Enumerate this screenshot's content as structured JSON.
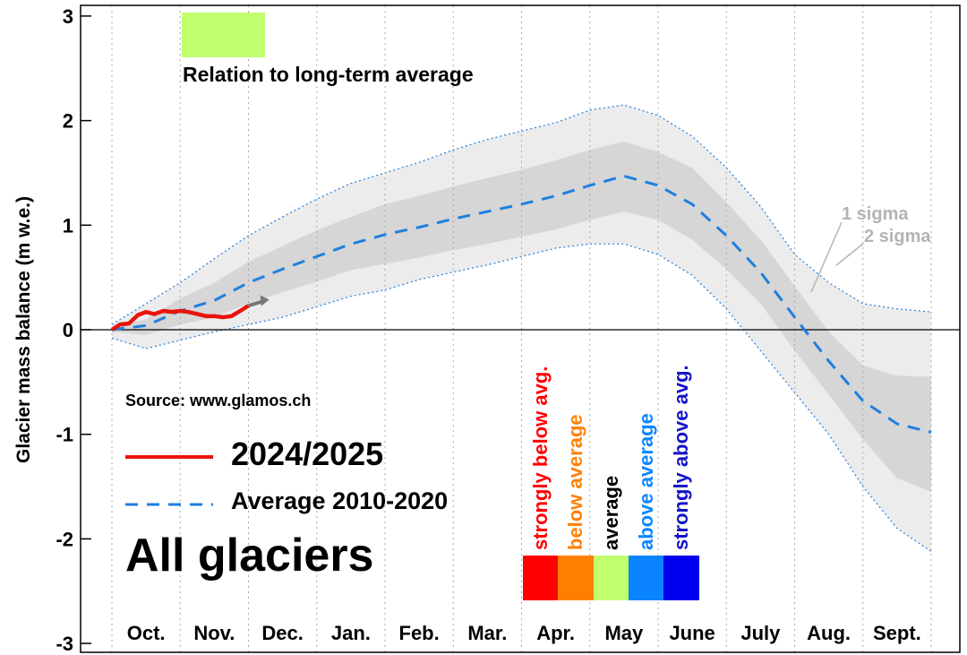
{
  "chart_data": {
    "type": "line",
    "ylabel": "Glacier mass balance (m w.e.)",
    "ylim": [
      -3,
      3
    ],
    "yticks": [
      "3",
      "2",
      "1",
      "0",
      "-1",
      "-2",
      "-3"
    ],
    "ytick_values": [
      3,
      2,
      1,
      0,
      -1,
      -2,
      -3
    ],
    "months": [
      "Oct.",
      "Nov.",
      "Dec.",
      "Jan.",
      "Feb.",
      "Mar.",
      "Apr.",
      "May",
      "June",
      "July",
      "Aug.",
      "Sept."
    ],
    "x_unit": "month index (0 = start of Oct., 12 = end of Sept.)",
    "average": {
      "name": "Average 2010-2020",
      "color": "#1f7fe0",
      "x": [
        0,
        0.5,
        1,
        1.5,
        2,
        2.5,
        3,
        3.5,
        4,
        4.5,
        5,
        5.5,
        6,
        6.5,
        7,
        7.5,
        8,
        8.5,
        9,
        9.5,
        10,
        10.5,
        11,
        11.5,
        12
      ],
      "y": [
        0,
        0.04,
        0.18,
        0.28,
        0.45,
        0.58,
        0.7,
        0.82,
        0.91,
        0.98,
        1.06,
        1.13,
        1.2,
        1.28,
        1.38,
        1.47,
        1.38,
        1.2,
        0.9,
        0.55,
        0.12,
        -0.3,
        -0.68,
        -0.9,
        -0.98
      ]
    },
    "sigma1": {
      "name": "1 sigma",
      "upper": [
        0.02,
        0.1,
        0.3,
        0.45,
        0.65,
        0.8,
        0.95,
        1.08,
        1.2,
        1.28,
        1.37,
        1.45,
        1.53,
        1.62,
        1.72,
        1.8,
        1.7,
        1.55,
        1.22,
        0.86,
        0.42,
        -0.02,
        -0.34,
        -0.44,
        -0.45
      ],
      "lower": [
        -0.02,
        -0.05,
        0.05,
        0.12,
        0.25,
        0.36,
        0.46,
        0.57,
        0.63,
        0.69,
        0.76,
        0.82,
        0.89,
        0.96,
        1.05,
        1.13,
        1.05,
        0.86,
        0.58,
        0.25,
        -0.2,
        -0.62,
        -1.05,
        -1.42,
        -1.55
      ]
    },
    "sigma2": {
      "name": "2 sigma",
      "upper": [
        0.05,
        0.25,
        0.45,
        0.68,
        0.9,
        1.08,
        1.25,
        1.4,
        1.5,
        1.6,
        1.72,
        1.82,
        1.9,
        1.98,
        2.1,
        2.15,
        2.05,
        1.85,
        1.55,
        1.18,
        0.72,
        0.45,
        0.25,
        0.2,
        0.17
      ],
      "lower": [
        -0.08,
        -0.18,
        -0.1,
        -0.02,
        0.05,
        0.12,
        0.22,
        0.32,
        0.38,
        0.48,
        0.55,
        0.62,
        0.7,
        0.78,
        0.82,
        0.82,
        0.72,
        0.52,
        0.2,
        -0.2,
        -0.6,
        -1.0,
        -1.5,
        -1.9,
        -2.12
      ]
    },
    "current": {
      "name": "2024/2025",
      "color": "#e8140c",
      "x": [
        0,
        0.12,
        0.25,
        0.38,
        0.5,
        0.62,
        0.75,
        0.88,
        1.0,
        1.12,
        1.25,
        1.38,
        1.5,
        1.62,
        1.75,
        1.88,
        2.0
      ],
      "y": [
        0,
        0.05,
        0.06,
        0.14,
        0.17,
        0.15,
        0.18,
        0.17,
        0.18,
        0.17,
        0.15,
        0.13,
        0.13,
        0.12,
        0.13,
        0.18,
        0.23
      ]
    },
    "current_extension": {
      "x": [
        2.0,
        2.2
      ],
      "y": [
        0.23,
        0.27
      ],
      "color": "#777777"
    },
    "relation_color": "#c0ff6e"
  },
  "labels": {
    "relation": "Relation to long-term average",
    "sigma1": "1 sigma",
    "sigma2": "2 sigma",
    "source": "Source: www.glamos.ch",
    "legend_current": "2024/2025",
    "legend_average": "Average 2010-2020",
    "title": "All glaciers"
  },
  "scale": [
    {
      "label": "strongly below avg.",
      "color": "#ff0000"
    },
    {
      "label": "below average",
      "color": "#ff8000"
    },
    {
      "label": "average",
      "color": "#c0ff6e",
      "text_color": "#000000"
    },
    {
      "label": "above average",
      "color": "#0a85ff"
    },
    {
      "label": "strongly above avg.",
      "color": "#0000ee",
      "text_color": "#1414c8"
    }
  ]
}
